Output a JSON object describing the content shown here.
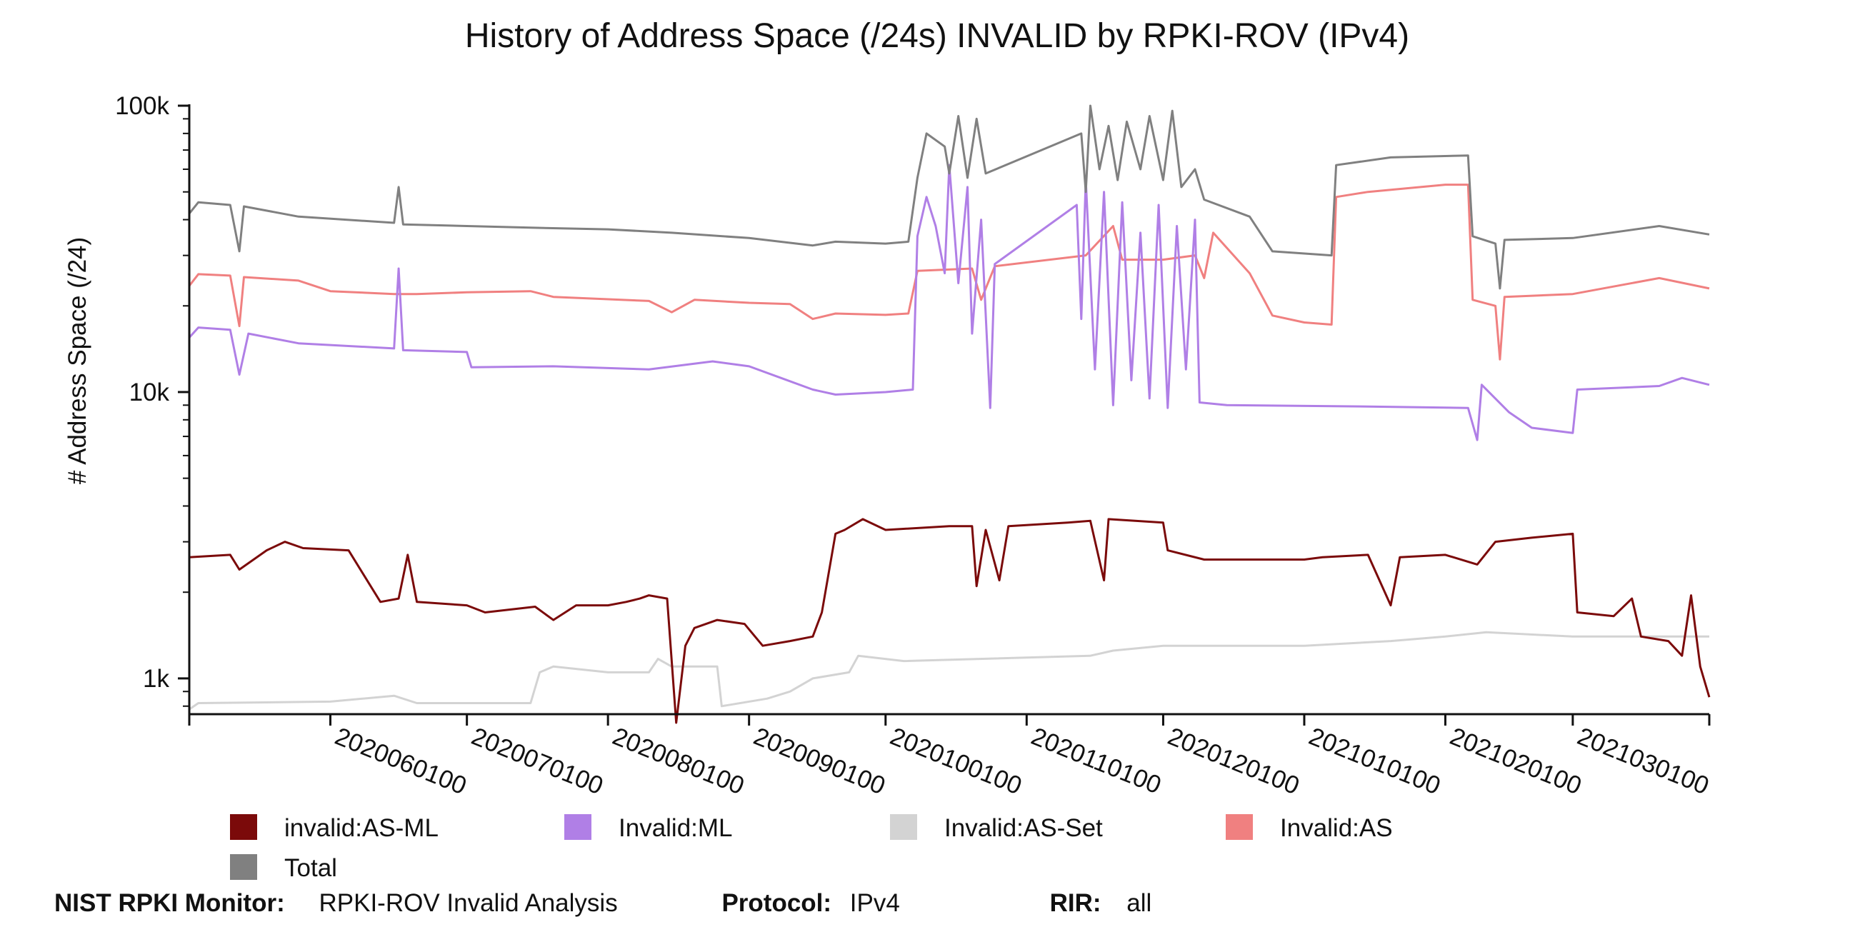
{
  "chart_data": {
    "type": "line",
    "title": "History of Address Space (/24s) INVALID by RPKI-ROV (IPv4)",
    "ylabel": "# Address Space (/24)",
    "xlabel": "",
    "yscale": "log",
    "ylim": [
      750,
      100000
    ],
    "y_ticks": [
      {
        "value": 1000,
        "label": "1k"
      },
      {
        "value": 10000,
        "label": "10k"
      },
      {
        "value": 100000,
        "label": "100k"
      }
    ],
    "x_range": [
      "2020-05-01",
      "2021-03-31"
    ],
    "x_ticks": [
      "2020060100",
      "2020070100",
      "2020080100",
      "2020090100",
      "2020100100",
      "2020110100",
      "2020120100",
      "2021010100",
      "2021020100",
      "2021030100"
    ],
    "legend_position": "bottom",
    "series": [
      {
        "name": "invalid:AS-ML",
        "color": "#7b0a0a",
        "points": [
          [
            "2020-05-01",
            2650
          ],
          [
            "2020-05-10",
            2700
          ],
          [
            "2020-05-12",
            2400
          ],
          [
            "2020-05-18",
            2800
          ],
          [
            "2020-05-22",
            3000
          ],
          [
            "2020-05-26",
            2850
          ],
          [
            "2020-06-05",
            2800
          ],
          [
            "2020-06-12",
            1850
          ],
          [
            "2020-06-16",
            1900
          ],
          [
            "2020-06-18",
            2700
          ],
          [
            "2020-06-20",
            1850
          ],
          [
            "2020-07-01",
            1800
          ],
          [
            "2020-07-05",
            1700
          ],
          [
            "2020-07-16",
            1780
          ],
          [
            "2020-07-20",
            1600
          ],
          [
            "2020-07-25",
            1800
          ],
          [
            "2020-08-01",
            1800
          ],
          [
            "2020-08-05",
            1850
          ],
          [
            "2020-08-08",
            1900
          ],
          [
            "2020-08-10",
            1950
          ],
          [
            "2020-08-14",
            1900
          ],
          [
            "2020-08-16",
            700
          ],
          [
            "2020-08-18",
            1300
          ],
          [
            "2020-08-20",
            1500
          ],
          [
            "2020-08-25",
            1600
          ],
          [
            "2020-08-31",
            1550
          ],
          [
            "2020-09-04",
            1300
          ],
          [
            "2020-09-10",
            1350
          ],
          [
            "2020-09-15",
            1400
          ],
          [
            "2020-09-17",
            1700
          ],
          [
            "2020-09-20",
            3200
          ],
          [
            "2020-09-22",
            3300
          ],
          [
            "2020-09-26",
            3600
          ],
          [
            "2020-10-01",
            3300
          ],
          [
            "2020-10-15",
            3400
          ],
          [
            "2020-10-20",
            3400
          ],
          [
            "2020-10-21",
            2100
          ],
          [
            "2020-10-23",
            3300
          ],
          [
            "2020-10-26",
            2200
          ],
          [
            "2020-10-28",
            3400
          ],
          [
            "2020-11-10",
            3500
          ],
          [
            "2020-11-15",
            3550
          ],
          [
            "2020-11-18",
            2200
          ],
          [
            "2020-11-19",
            3600
          ],
          [
            "2020-12-01",
            3500
          ],
          [
            "2020-12-02",
            2800
          ],
          [
            "2020-12-10",
            2600
          ],
          [
            "2020-12-20",
            2600
          ],
          [
            "2021-01-01",
            2600
          ],
          [
            "2021-01-05",
            2650
          ],
          [
            "2021-01-15",
            2700
          ],
          [
            "2021-01-20",
            1800
          ],
          [
            "2021-01-22",
            2650
          ],
          [
            "2021-02-01",
            2700
          ],
          [
            "2021-02-08",
            2500
          ],
          [
            "2021-02-12",
            3000
          ],
          [
            "2021-02-20",
            3100
          ],
          [
            "2021-03-01",
            3200
          ],
          [
            "2021-03-02",
            1700
          ],
          [
            "2021-03-10",
            1650
          ],
          [
            "2021-03-14",
            1900
          ],
          [
            "2021-03-16",
            1400
          ],
          [
            "2021-03-22",
            1350
          ],
          [
            "2021-03-25",
            1200
          ],
          [
            "2021-03-27",
            1950
          ],
          [
            "2021-03-29",
            1100
          ],
          [
            "2021-03-31",
            860
          ]
        ]
      },
      {
        "name": "Invalid:ML",
        "color": "#b07fe6",
        "points": [
          [
            "2020-05-01",
            15500
          ],
          [
            "2020-05-03",
            16800
          ],
          [
            "2020-05-10",
            16500
          ],
          [
            "2020-05-12",
            11500
          ],
          [
            "2020-05-14",
            16000
          ],
          [
            "2020-05-25",
            14800
          ],
          [
            "2020-06-15",
            14200
          ],
          [
            "2020-06-16",
            27000
          ],
          [
            "2020-06-17",
            14000
          ],
          [
            "2020-07-01",
            13800
          ],
          [
            "2020-07-02",
            12200
          ],
          [
            "2020-07-20",
            12300
          ],
          [
            "2020-08-10",
            12000
          ],
          [
            "2020-08-24",
            12800
          ],
          [
            "2020-09-01",
            12300
          ],
          [
            "2020-09-08",
            11200
          ],
          [
            "2020-09-15",
            10200
          ],
          [
            "2020-09-20",
            9800
          ],
          [
            "2020-10-01",
            10000
          ],
          [
            "2020-10-07",
            10200
          ],
          [
            "2020-10-08",
            35000
          ],
          [
            "2020-10-10",
            48000
          ],
          [
            "2020-10-12",
            38000
          ],
          [
            "2020-10-14",
            26000
          ],
          [
            "2020-10-15",
            62000
          ],
          [
            "2020-10-17",
            24000
          ],
          [
            "2020-10-19",
            52000
          ],
          [
            "2020-10-20",
            16000
          ],
          [
            "2020-10-22",
            40000
          ],
          [
            "2020-10-24",
            8800
          ],
          [
            "2020-10-25",
            28000
          ],
          [
            "2020-11-12",
            45000
          ],
          [
            "2020-11-13",
            18000
          ],
          [
            "2020-11-14",
            55000
          ],
          [
            "2020-11-16",
            12000
          ],
          [
            "2020-11-18",
            50000
          ],
          [
            "2020-11-20",
            9000
          ],
          [
            "2020-11-22",
            46000
          ],
          [
            "2020-11-24",
            11000
          ],
          [
            "2020-11-26",
            36000
          ],
          [
            "2020-11-28",
            9500
          ],
          [
            "2020-11-30",
            45000
          ],
          [
            "2020-12-02",
            8800
          ],
          [
            "2020-12-04",
            38000
          ],
          [
            "2020-12-06",
            12000
          ],
          [
            "2020-12-08",
            40000
          ],
          [
            "2020-12-09",
            9200
          ],
          [
            "2020-12-15",
            9000
          ],
          [
            "2021-01-15",
            8900
          ],
          [
            "2021-02-06",
            8800
          ],
          [
            "2021-02-08",
            6800
          ],
          [
            "2021-02-09",
            10600
          ],
          [
            "2021-02-15",
            8500
          ],
          [
            "2021-02-20",
            7500
          ],
          [
            "2021-03-01",
            7200
          ],
          [
            "2021-03-02",
            10200
          ],
          [
            "2021-03-20",
            10500
          ],
          [
            "2021-03-25",
            11200
          ],
          [
            "2021-03-31",
            10600
          ]
        ]
      },
      {
        "name": "Invalid:AS-Set",
        "color": "#d3d3d3",
        "points": [
          [
            "2020-05-01",
            780
          ],
          [
            "2020-05-03",
            820
          ],
          [
            "2020-06-01",
            830
          ],
          [
            "2020-06-15",
            870
          ],
          [
            "2020-06-20",
            820
          ],
          [
            "2020-07-05",
            820
          ],
          [
            "2020-07-15",
            820
          ],
          [
            "2020-07-17",
            1050
          ],
          [
            "2020-07-20",
            1100
          ],
          [
            "2020-08-01",
            1050
          ],
          [
            "2020-08-10",
            1050
          ],
          [
            "2020-08-12",
            1170
          ],
          [
            "2020-08-15",
            1100
          ],
          [
            "2020-08-25",
            1100
          ],
          [
            "2020-08-26",
            800
          ],
          [
            "2020-09-05",
            850
          ],
          [
            "2020-09-10",
            900
          ],
          [
            "2020-09-15",
            1000
          ],
          [
            "2020-09-23",
            1050
          ],
          [
            "2020-09-25",
            1200
          ],
          [
            "2020-10-05",
            1150
          ],
          [
            "2020-11-15",
            1200
          ],
          [
            "2020-11-20",
            1250
          ],
          [
            "2020-12-01",
            1300
          ],
          [
            "2020-12-15",
            1300
          ],
          [
            "2021-01-01",
            1300
          ],
          [
            "2021-01-20",
            1350
          ],
          [
            "2021-02-01",
            1400
          ],
          [
            "2021-02-10",
            1450
          ],
          [
            "2021-03-01",
            1400
          ],
          [
            "2021-03-20",
            1400
          ],
          [
            "2021-03-31",
            1400
          ]
        ]
      },
      {
        "name": "Invalid:AS",
        "color": "#f08080",
        "points": [
          [
            "2020-05-01",
            23500
          ],
          [
            "2020-05-03",
            25800
          ],
          [
            "2020-05-10",
            25500
          ],
          [
            "2020-05-12",
            17000
          ],
          [
            "2020-05-13",
            25200
          ],
          [
            "2020-05-25",
            24500
          ],
          [
            "2020-06-01",
            22500
          ],
          [
            "2020-06-15",
            22000
          ],
          [
            "2020-06-20",
            22000
          ],
          [
            "2020-07-01",
            22300
          ],
          [
            "2020-07-15",
            22500
          ],
          [
            "2020-07-20",
            21500
          ],
          [
            "2020-08-10",
            20800
          ],
          [
            "2020-08-15",
            19000
          ],
          [
            "2020-08-20",
            21000
          ],
          [
            "2020-09-01",
            20500
          ],
          [
            "2020-09-10",
            20300
          ],
          [
            "2020-09-15",
            18000
          ],
          [
            "2020-09-20",
            18800
          ],
          [
            "2020-10-01",
            18600
          ],
          [
            "2020-10-06",
            18800
          ],
          [
            "2020-10-08",
            26500
          ],
          [
            "2020-10-20",
            27000
          ],
          [
            "2020-10-22",
            21000
          ],
          [
            "2020-10-25",
            27500
          ],
          [
            "2020-11-14",
            30000
          ],
          [
            "2020-11-20",
            38000
          ],
          [
            "2020-11-22",
            29000
          ],
          [
            "2020-12-01",
            29000
          ],
          [
            "2020-12-08",
            30000
          ],
          [
            "2020-12-10",
            25000
          ],
          [
            "2020-12-12",
            36000
          ],
          [
            "2020-12-20",
            26000
          ],
          [
            "2020-12-25",
            18500
          ],
          [
            "2021-01-01",
            17500
          ],
          [
            "2021-01-07",
            17200
          ],
          [
            "2021-01-08",
            48000
          ],
          [
            "2021-01-15",
            50000
          ],
          [
            "2021-02-01",
            53000
          ],
          [
            "2021-02-06",
            53000
          ],
          [
            "2021-02-07",
            21000
          ],
          [
            "2021-02-12",
            20000
          ],
          [
            "2021-02-13",
            13000
          ],
          [
            "2021-02-14",
            21500
          ],
          [
            "2021-03-01",
            22000
          ],
          [
            "2021-03-20",
            25000
          ],
          [
            "2021-03-31",
            23000
          ]
        ]
      },
      {
        "name": "Total",
        "color": "#808080",
        "points": [
          [
            "2020-05-01",
            42000
          ],
          [
            "2020-05-03",
            46000
          ],
          [
            "2020-05-10",
            45000
          ],
          [
            "2020-05-12",
            31000
          ],
          [
            "2020-05-13",
            44500
          ],
          [
            "2020-05-25",
            41000
          ],
          [
            "2020-06-15",
            39000
          ],
          [
            "2020-06-16",
            52000
          ],
          [
            "2020-06-17",
            38500
          ],
          [
            "2020-07-01",
            38000
          ],
          [
            "2020-07-15",
            37500
          ],
          [
            "2020-08-01",
            37000
          ],
          [
            "2020-08-15",
            36000
          ],
          [
            "2020-09-01",
            34500
          ],
          [
            "2020-09-15",
            32500
          ],
          [
            "2020-09-20",
            33500
          ],
          [
            "2020-10-01",
            33000
          ],
          [
            "2020-10-06",
            33500
          ],
          [
            "2020-10-08",
            56000
          ],
          [
            "2020-10-10",
            80000
          ],
          [
            "2020-10-14",
            72000
          ],
          [
            "2020-10-15",
            58000
          ],
          [
            "2020-10-17",
            92000
          ],
          [
            "2020-10-19",
            56000
          ],
          [
            "2020-10-21",
            90000
          ],
          [
            "2020-10-23",
            58000
          ],
          [
            "2020-11-13",
            80000
          ],
          [
            "2020-11-14",
            50000
          ],
          [
            "2020-11-15",
            100000
          ],
          [
            "2020-11-17",
            60000
          ],
          [
            "2020-11-19",
            85000
          ],
          [
            "2020-11-21",
            55000
          ],
          [
            "2020-11-23",
            88000
          ],
          [
            "2020-11-26",
            60000
          ],
          [
            "2020-11-28",
            92000
          ],
          [
            "2020-12-01",
            55000
          ],
          [
            "2020-12-03",
            96000
          ],
          [
            "2020-12-05",
            52000
          ],
          [
            "2020-12-08",
            60000
          ],
          [
            "2020-12-10",
            47000
          ],
          [
            "2020-12-20",
            41000
          ],
          [
            "2020-12-25",
            31000
          ],
          [
            "2021-01-07",
            30000
          ],
          [
            "2021-01-08",
            62000
          ],
          [
            "2021-01-20",
            66000
          ],
          [
            "2021-02-06",
            67000
          ],
          [
            "2021-02-07",
            35000
          ],
          [
            "2021-02-12",
            33000
          ],
          [
            "2021-02-13",
            23000
          ],
          [
            "2021-02-14",
            34000
          ],
          [
            "2021-03-01",
            34500
          ],
          [
            "2021-03-20",
            38000
          ],
          [
            "2021-03-31",
            35500
          ]
        ]
      }
    ]
  },
  "legend": [
    {
      "label": "invalid:AS-ML",
      "color": "#7b0a0a"
    },
    {
      "label": "Invalid:ML",
      "color": "#b07fe6"
    },
    {
      "label": "Invalid:AS-Set",
      "color": "#d3d3d3"
    },
    {
      "label": "Invalid:AS",
      "color": "#f08080"
    },
    {
      "label": "Total",
      "color": "#808080"
    }
  ],
  "footer": {
    "monitor_label": "NIST RPKI Monitor:",
    "monitor_value": "RPKI-ROV Invalid Analysis",
    "protocol_label": "Protocol:",
    "protocol_value": "IPv4",
    "rir_label": "RIR:",
    "rir_value": "all"
  }
}
